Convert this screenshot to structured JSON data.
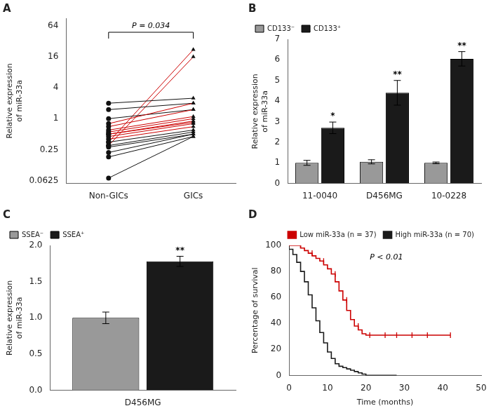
{
  "chart_data": [
    {
      "type": "line",
      "title": "A",
      "categories": [
        "Non-GICs",
        "GICs"
      ],
      "ylabel": "Relative expression\nof miR-33a",
      "log": "y",
      "ylim": [
        0.055,
        90
      ],
      "yticks": [
        0.0625,
        0.25,
        1,
        4,
        16,
        64
      ],
      "grid": false,
      "series": [
        {
          "color": "#111111",
          "values": [
            0.07,
            0.45
          ]
        },
        {
          "color": "#111111",
          "values": [
            0.18,
            0.45
          ]
        },
        {
          "color": "#111111",
          "values": [
            0.22,
            0.5
          ]
        },
        {
          "color": "#111111",
          "values": [
            0.28,
            0.5
          ]
        },
        {
          "color": "#111111",
          "values": [
            0.3,
            0.55
          ]
        },
        {
          "color": "#111111",
          "values": [
            0.35,
            0.6
          ]
        },
        {
          "color": "#cc0000",
          "values": [
            0.4,
            0.7
          ]
        },
        {
          "color": "#cc0000",
          "values": [
            0.45,
            0.8
          ]
        },
        {
          "color": "#cc0000",
          "values": [
            0.5,
            0.85
          ]
        },
        {
          "color": "#cc0000",
          "values": [
            0.5,
            0.9
          ]
        },
        {
          "color": "#cc0000",
          "values": [
            0.55,
            1.0
          ]
        },
        {
          "color": "#cc0000",
          "values": [
            0.6,
            1.1
          ]
        },
        {
          "color": "#cc0000",
          "values": [
            0.7,
            1.5
          ]
        },
        {
          "color": "#cc0000",
          "values": [
            0.8,
            2.0
          ]
        },
        {
          "color": "#111111",
          "values": [
            1.0,
            1.5
          ]
        },
        {
          "color": "#111111",
          "values": [
            1.5,
            2.0
          ]
        },
        {
          "color": "#111111",
          "values": [
            2.0,
            2.5
          ]
        },
        {
          "color": "#cc0000",
          "values": [
            0.3,
            16.0
          ]
        },
        {
          "color": "#cc0000",
          "values": [
            0.35,
            22.0
          ]
        }
      ],
      "annotations": [
        {
          "text": "P = 0.034"
        }
      ]
    },
    {
      "type": "bar",
      "title": "B",
      "categories": [
        "11-0040",
        "D456MG",
        "10-0228"
      ],
      "ylabel": "Relative expression\nof miR-33a",
      "ylim": [
        0,
        7
      ],
      "yticks": [
        0,
        1,
        2,
        3,
        4,
        5,
        6,
        7
      ],
      "grid": false,
      "legend": "upper left",
      "series": [
        {
          "name": "CD133⁻",
          "color": "#999999",
          "values": [
            1.0,
            1.05,
            1.0
          ],
          "errors": [
            0.12,
            0.1,
            0.04
          ]
        },
        {
          "name": "CD133⁺",
          "color": "#1a1a1a",
          "values": [
            2.7,
            4.4,
            6.05
          ],
          "errors": [
            0.28,
            0.6,
            0.35
          ]
        }
      ],
      "annotations": [
        {
          "text": "*",
          "category": "11-0040",
          "series": "CD133⁺"
        },
        {
          "text": "**",
          "category": "D456MG",
          "series": "CD133⁺"
        },
        {
          "text": "**",
          "category": "10-0228",
          "series": "CD133⁺"
        }
      ]
    },
    {
      "type": "bar",
      "title": "C",
      "categories": [
        "D456MG"
      ],
      "ylabel": "Relative expression\nof miR-33a",
      "ylim": [
        0,
        2.0
      ],
      "yticks": [
        {
          "value": 0.0,
          "label": "0.0"
        },
        0.5,
        {
          "value": 1.0,
          "label": "1.0"
        },
        1.5,
        {
          "value": 2.0,
          "label": "2.0"
        }
      ],
      "grid": false,
      "legend": "upper left",
      "series": [
        {
          "name": "SSEA⁻",
          "color": "#999999",
          "values": [
            1.0
          ],
          "errors": [
            0.08
          ]
        },
        {
          "name": "SSEA⁺",
          "color": "#1a1a1a",
          "values": [
            1.78
          ],
          "errors": [
            0.07
          ]
        }
      ],
      "annotations": [
        {
          "text": "**",
          "category": "D456MG",
          "series": "SSEA⁺"
        }
      ]
    },
    {
      "type": "line",
      "title": "D",
      "xlabel": "Time (months)",
      "ylabel": "Percentage of survival",
      "xlim": [
        0,
        50
      ],
      "xticks": [
        0,
        10,
        20,
        30,
        40,
        50
      ],
      "ylim": [
        0,
        100
      ],
      "yticks": [
        0,
        20,
        40,
        60,
        80,
        100
      ],
      "grid": false,
      "legend": "upper right",
      "series": [
        {
          "name": "Low miR-33a (n = 37)",
          "color": "#cc0000",
          "line_style": "step",
          "x": [
            0,
            3,
            4,
            5,
            6,
            7,
            8,
            9,
            10,
            11,
            12,
            13,
            14,
            15,
            16,
            17,
            18,
            19,
            20,
            21,
            22,
            23,
            25,
            42
          ],
          "values": [
            100,
            100,
            98,
            96,
            94,
            92,
            90,
            88,
            85,
            82,
            78,
            72,
            65,
            58,
            50,
            43,
            38,
            35,
            32,
            31,
            31,
            31,
            31,
            31
          ]
        },
        {
          "name": "High miR-33a (n = 70)",
          "color": "#1a1a1a",
          "line_style": "step",
          "x": [
            0,
            1,
            2,
            3,
            4,
            5,
            6,
            7,
            8,
            9,
            10,
            11,
            12,
            13,
            14,
            15,
            16,
            17,
            18,
            19,
            20,
            22,
            24,
            26,
            28
          ],
          "values": [
            100,
            97,
            93,
            87,
            80,
            72,
            62,
            52,
            42,
            33,
            25,
            18,
            13,
            9,
            7,
            6,
            5,
            4,
            3,
            2,
            1,
            0,
            0,
            0,
            0
          ]
        },
        {
          "type": "scatter",
          "marker": "|",
          "color": "#cc0000",
          "x": [
            3,
            6,
            9,
            12,
            15,
            18,
            21,
            25,
            28,
            32,
            36,
            42
          ],
          "values": [
            100,
            94,
            88,
            78,
            58,
            38,
            31,
            31,
            31,
            31,
            31,
            31
          ]
        }
      ],
      "annotations": [
        {
          "text": "P < 0.01"
        }
      ]
    }
  ]
}
